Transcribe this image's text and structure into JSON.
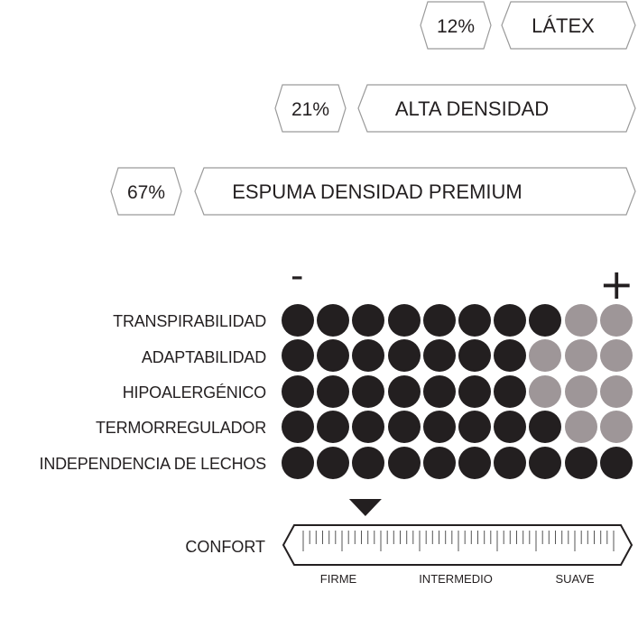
{
  "materials": [
    {
      "percent": "12%",
      "label": "LÁTEX"
    },
    {
      "percent": "21%",
      "label": "ALTA DENSIDAD"
    },
    {
      "percent": "67%",
      "label": "ESPUMA DENSIDAD PREMIUM"
    }
  ],
  "scale_signs": {
    "minus": "-",
    "plus": "+"
  },
  "ratings": {
    "max_dots": 10,
    "colors": {
      "filled": "#231f20",
      "empty": "#9e9698"
    },
    "items": [
      {
        "label": "TRANSPIRABILIDAD",
        "level": 8
      },
      {
        "label": "ADAPTABILIDAD",
        "level": 7
      },
      {
        "label": "HIPOALERGÉNICO",
        "level": 7
      },
      {
        "label": "TERMORREGULADOR",
        "level": 8
      },
      {
        "label": "INDEPENDENCIA DE LECHOS",
        "level": 10
      }
    ]
  },
  "comfort": {
    "label": "CONFORT",
    "marker_fraction": 0.23,
    "scale": [
      "FIRME",
      "INTERMEDIO",
      "SUAVE"
    ]
  }
}
